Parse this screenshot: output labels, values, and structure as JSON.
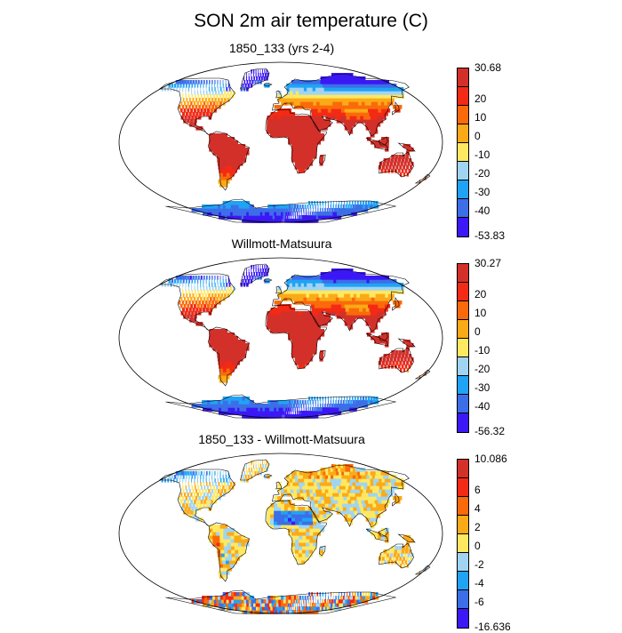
{
  "title": "SON 2m air temperature (C)",
  "panels": [
    {
      "id": "model",
      "title": "1850_133 (yrs 2-4)",
      "colorbar": {
        "labels": [
          "30.68",
          "20",
          "10",
          "0",
          "-10",
          "-20",
          "-30",
          "-40",
          "-53.83"
        ],
        "colors": [
          "#d3302a",
          "#f32a15",
          "#fa6a0a",
          "#fbaa17",
          "#fee861",
          "#a0d4f2",
          "#21a3f5",
          "#3c6ee8",
          "#3b18f5"
        ]
      }
    },
    {
      "id": "obs",
      "title": "Willmott-Matsuura",
      "colorbar": {
        "labels": [
          "30.27",
          "20",
          "10",
          "0",
          "-10",
          "-20",
          "-30",
          "-40",
          "-56.32"
        ],
        "colors": [
          "#d3302a",
          "#f32a15",
          "#fa6a0a",
          "#fbaa17",
          "#fee861",
          "#a0d4f2",
          "#21a3f5",
          "#3c6ee8",
          "#3b18f5"
        ]
      }
    },
    {
      "id": "diff",
      "title": "1850_133 - Willmott-Matsuura",
      "colorbar": {
        "labels": [
          "10.086",
          "6",
          "4",
          "2",
          "0",
          "-2",
          "-4",
          "-6",
          "-16.636"
        ],
        "colors": [
          "#d3302a",
          "#f32a15",
          "#fa6a0a",
          "#fbaa17",
          "#fee861",
          "#a0d4f2",
          "#21a3f5",
          "#3c6ee8",
          "#3b18f5"
        ]
      }
    }
  ]
}
